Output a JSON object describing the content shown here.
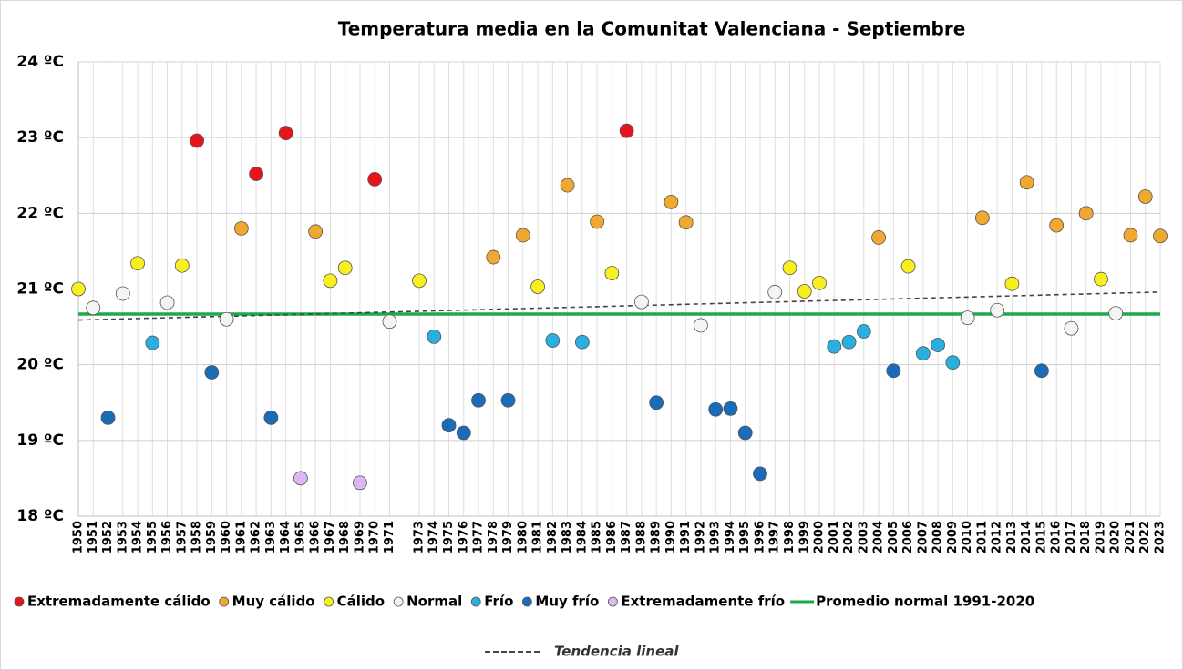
{
  "chart_data": {
    "type": "scatter",
    "title": "Temperatura media en la Comunitat Valenciana - Septiembre",
    "xlim": [
      1950,
      2023
    ],
    "xticks": [
      1950,
      1951,
      1952,
      1953,
      1954,
      1955,
      1956,
      1957,
      1958,
      1959,
      1960,
      1961,
      1962,
      1963,
      1964,
      1965,
      1966,
      1967,
      1968,
      1969,
      1970,
      1971,
      1973,
      1974,
      1975,
      1976,
      1977,
      1978,
      1979,
      1980,
      1981,
      1982,
      1983,
      1984,
      1985,
      1986,
      1987,
      1988,
      1989,
      1990,
      1991,
      1992,
      1993,
      1994,
      1995,
      1996,
      1997,
      1998,
      1999,
      2000,
      2001,
      2002,
      2003,
      2004,
      2005,
      2006,
      2007,
      2008,
      2009,
      2010,
      2011,
      2012,
      2013,
      2014,
      2015,
      2016,
      2017,
      2018,
      2019,
      2020,
      2021,
      2022,
      2023
    ],
    "ylim": [
      18,
      24
    ],
    "yticks": [
      {
        "value": 18,
        "label": "18 ºC"
      },
      {
        "value": 19,
        "label": "19 ºC"
      },
      {
        "value": 20,
        "label": "20 ºC"
      },
      {
        "value": 21,
        "label": "21 ºC"
      },
      {
        "value": 22,
        "label": "22 ºC"
      },
      {
        "value": 23,
        "label": "23 ºC"
      },
      {
        "value": 24,
        "label": "24 ºC"
      }
    ],
    "grid": true,
    "series": [
      {
        "name": "Extremadamente cálido",
        "color": "#e8141b",
        "x": [
          1958,
          1962,
          1964,
          1970,
          1987
        ],
        "values": [
          22.96,
          22.52,
          23.06,
          22.45,
          23.09
        ]
      },
      {
        "name": "Muy cálido",
        "color": "#f0a830",
        "x": [
          1961,
          1966,
          1978,
          1980,
          1983,
          1985,
          1990,
          1991,
          2004,
          2011,
          2014,
          2016,
          2018,
          2021,
          2022,
          2023
        ],
        "values": [
          21.8,
          21.76,
          21.42,
          21.71,
          22.37,
          21.89,
          22.15,
          21.88,
          21.68,
          21.94,
          22.41,
          21.84,
          22.0,
          21.71,
          22.22,
          21.7
        ]
      },
      {
        "name": "Cálido",
        "color": "#f7ef1e",
        "x": [
          1950,
          1954,
          1957,
          1967,
          1968,
          1973,
          1981,
          1986,
          1998,
          1999,
          2000,
          2006,
          2013,
          2019
        ],
        "values": [
          21.0,
          21.34,
          21.31,
          21.11,
          21.28,
          21.11,
          21.03,
          21.21,
          21.28,
          20.97,
          21.08,
          21.3,
          21.07,
          21.13
        ]
      },
      {
        "name": "Normal",
        "color": "#f4f4f4",
        "x": [
          1951,
          1953,
          1956,
          1960,
          1971,
          1988,
          1992,
          1997,
          2010,
          2012,
          2017,
          2020
        ],
        "values": [
          20.75,
          20.94,
          20.82,
          20.6,
          20.57,
          20.83,
          20.52,
          20.96,
          20.62,
          20.72,
          20.48,
          20.68
        ]
      },
      {
        "name": "Frío",
        "color": "#29b0e0",
        "x": [
          1955,
          1974,
          1982,
          1984,
          2001,
          2002,
          2003,
          2007,
          2008,
          2009
        ],
        "values": [
          20.29,
          20.37,
          20.32,
          20.3,
          20.24,
          20.3,
          20.44,
          20.15,
          20.26,
          20.03
        ]
      },
      {
        "name": "Muy frío",
        "color": "#1a6bb8",
        "x": [
          1952,
          1959,
          1963,
          1975,
          1976,
          1977,
          1979,
          1989,
          1993,
          1994,
          1995,
          1996,
          2005,
          2015
        ],
        "values": [
          19.3,
          19.9,
          19.3,
          19.2,
          19.1,
          19.53,
          19.53,
          19.5,
          19.41,
          19.42,
          19.1,
          18.56,
          19.92,
          19.92
        ]
      },
      {
        "name": "Extremadamente frío",
        "color": "#dcb8f2",
        "x": [
          1965,
          1969
        ],
        "values": [
          18.5,
          18.44
        ]
      }
    ],
    "average": {
      "name": "Promedio normal 1991-2020",
      "color": "#1aab4a",
      "value": 20.67
    },
    "trend": {
      "name": "Tendencia lineal",
      "color": "#444444",
      "x": [
        1950,
        2023
      ],
      "values": [
        20.59,
        20.96
      ]
    }
  }
}
